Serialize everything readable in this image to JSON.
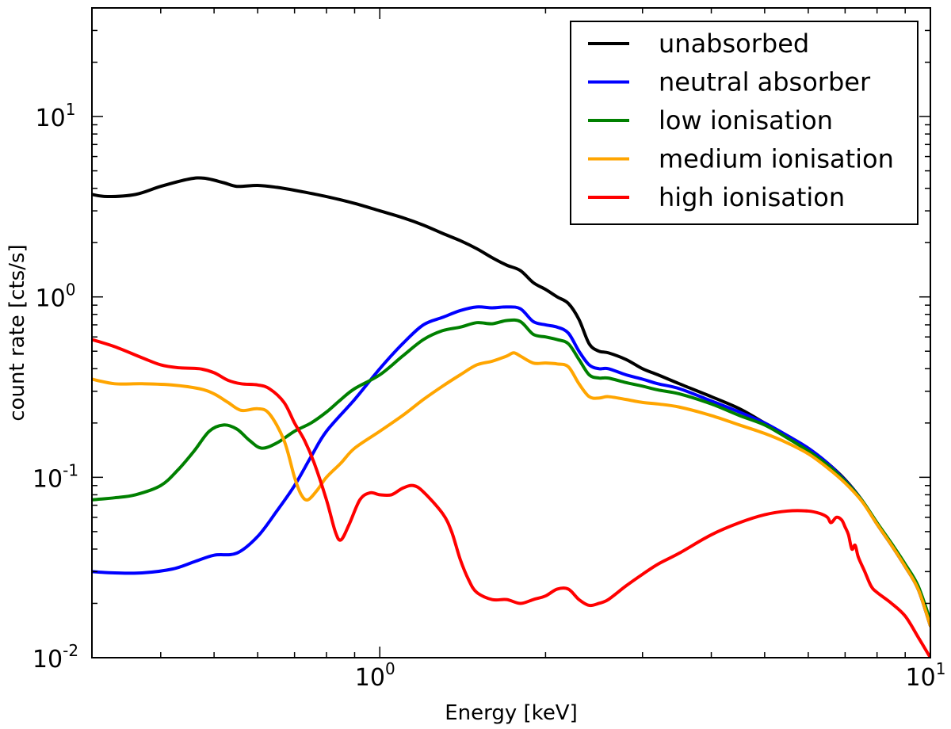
{
  "chart_data": {
    "type": "line",
    "title": "",
    "xlabel": "Energy [keV]",
    "ylabel": "count rate [cts/s]",
    "xscale": "log",
    "yscale": "log",
    "xlim": [
      0.3,
      10
    ],
    "ylim": [
      0.01,
      40
    ],
    "grid": false,
    "legend_position": "top-right",
    "x_ticks": [
      {
        "value": 1,
        "base": "10",
        "exp": "0"
      },
      {
        "value": 10,
        "base": "10",
        "exp": "1"
      }
    ],
    "y_ticks": [
      {
        "value": 0.01,
        "base": "10",
        "exp": "-2"
      },
      {
        "value": 0.1,
        "base": "10",
        "exp": "-1"
      },
      {
        "value": 1,
        "base": "10",
        "exp": "0"
      },
      {
        "value": 10,
        "base": "10",
        "exp": "1"
      }
    ],
    "series": [
      {
        "name": "unabsorbed",
        "color": "#000000",
        "points": [
          [
            0.3,
            3.7
          ],
          [
            0.32,
            3.6
          ],
          [
            0.36,
            3.7
          ],
          [
            0.4,
            4.1
          ],
          [
            0.45,
            4.5
          ],
          [
            0.48,
            4.55
          ],
          [
            0.52,
            4.3
          ],
          [
            0.55,
            4.1
          ],
          [
            0.6,
            4.15
          ],
          [
            0.65,
            4.05
          ],
          [
            0.7,
            3.9
          ],
          [
            0.8,
            3.6
          ],
          [
            0.9,
            3.3
          ],
          [
            1.0,
            3.0
          ],
          [
            1.1,
            2.75
          ],
          [
            1.2,
            2.5
          ],
          [
            1.3,
            2.25
          ],
          [
            1.4,
            2.05
          ],
          [
            1.5,
            1.85
          ],
          [
            1.6,
            1.65
          ],
          [
            1.7,
            1.5
          ],
          [
            1.8,
            1.4
          ],
          [
            1.9,
            1.2
          ],
          [
            2.0,
            1.1
          ],
          [
            2.1,
            1.0
          ],
          [
            2.2,
            0.92
          ],
          [
            2.3,
            0.75
          ],
          [
            2.4,
            0.55
          ],
          [
            2.5,
            0.5
          ],
          [
            2.6,
            0.49
          ],
          [
            2.8,
            0.45
          ],
          [
            3.0,
            0.4
          ],
          [
            3.2,
            0.37
          ],
          [
            3.5,
            0.33
          ],
          [
            4.0,
            0.28
          ],
          [
            4.5,
            0.24
          ],
          [
            5.0,
            0.2
          ],
          [
            5.5,
            0.17
          ],
          [
            6.0,
            0.145
          ],
          [
            6.5,
            0.12
          ],
          [
            7.0,
            0.097
          ],
          [
            7.5,
            0.075
          ],
          [
            8.0,
            0.055
          ],
          [
            8.5,
            0.042
          ],
          [
            9.0,
            0.032
          ],
          [
            9.5,
            0.024
          ],
          [
            10.0,
            0.015
          ]
        ]
      },
      {
        "name": "neutral absorber",
        "color": "#0000ff",
        "points": [
          [
            0.3,
            0.03
          ],
          [
            0.33,
            0.0295
          ],
          [
            0.37,
            0.0295
          ],
          [
            0.42,
            0.031
          ],
          [
            0.46,
            0.034
          ],
          [
            0.5,
            0.037
          ],
          [
            0.55,
            0.038
          ],
          [
            0.6,
            0.047
          ],
          [
            0.65,
            0.065
          ],
          [
            0.7,
            0.09
          ],
          [
            0.75,
            0.13
          ],
          [
            0.8,
            0.18
          ],
          [
            0.9,
            0.27
          ],
          [
            1.0,
            0.4
          ],
          [
            1.1,
            0.55
          ],
          [
            1.2,
            0.7
          ],
          [
            1.3,
            0.77
          ],
          [
            1.4,
            0.84
          ],
          [
            1.5,
            0.88
          ],
          [
            1.6,
            0.87
          ],
          [
            1.7,
            0.88
          ],
          [
            1.8,
            0.86
          ],
          [
            1.9,
            0.73
          ],
          [
            2.0,
            0.7
          ],
          [
            2.1,
            0.68
          ],
          [
            2.2,
            0.63
          ],
          [
            2.3,
            0.5
          ],
          [
            2.4,
            0.42
          ],
          [
            2.5,
            0.4
          ],
          [
            2.6,
            0.4
          ],
          [
            2.8,
            0.37
          ],
          [
            3.0,
            0.35
          ],
          [
            3.2,
            0.33
          ],
          [
            3.5,
            0.31
          ],
          [
            4.0,
            0.265
          ],
          [
            4.5,
            0.23
          ],
          [
            5.0,
            0.2
          ],
          [
            5.5,
            0.17
          ],
          [
            6.0,
            0.145
          ],
          [
            6.5,
            0.12
          ],
          [
            7.0,
            0.096
          ],
          [
            7.5,
            0.075
          ],
          [
            8.0,
            0.055
          ],
          [
            8.5,
            0.042
          ],
          [
            9.0,
            0.032
          ],
          [
            9.5,
            0.024
          ],
          [
            10.0,
            0.015
          ]
        ]
      },
      {
        "name": "low ionisation",
        "color": "#008000",
        "points": [
          [
            0.3,
            0.075
          ],
          [
            0.33,
            0.077
          ],
          [
            0.36,
            0.08
          ],
          [
            0.4,
            0.09
          ],
          [
            0.43,
            0.11
          ],
          [
            0.46,
            0.14
          ],
          [
            0.49,
            0.18
          ],
          [
            0.52,
            0.195
          ],
          [
            0.55,
            0.185
          ],
          [
            0.58,
            0.16
          ],
          [
            0.61,
            0.145
          ],
          [
            0.65,
            0.155
          ],
          [
            0.7,
            0.18
          ],
          [
            0.75,
            0.2
          ],
          [
            0.8,
            0.23
          ],
          [
            0.85,
            0.27
          ],
          [
            0.9,
            0.31
          ],
          [
            1.0,
            0.37
          ],
          [
            1.1,
            0.47
          ],
          [
            1.2,
            0.58
          ],
          [
            1.3,
            0.65
          ],
          [
            1.4,
            0.68
          ],
          [
            1.5,
            0.72
          ],
          [
            1.6,
            0.71
          ],
          [
            1.7,
            0.74
          ],
          [
            1.8,
            0.73
          ],
          [
            1.9,
            0.62
          ],
          [
            2.0,
            0.6
          ],
          [
            2.1,
            0.58
          ],
          [
            2.2,
            0.55
          ],
          [
            2.3,
            0.45
          ],
          [
            2.4,
            0.37
          ],
          [
            2.5,
            0.355
          ],
          [
            2.6,
            0.355
          ],
          [
            2.8,
            0.335
          ],
          [
            3.0,
            0.32
          ],
          [
            3.2,
            0.305
          ],
          [
            3.5,
            0.29
          ],
          [
            4.0,
            0.255
          ],
          [
            4.5,
            0.22
          ],
          [
            5.0,
            0.195
          ],
          [
            5.5,
            0.165
          ],
          [
            6.0,
            0.14
          ],
          [
            6.5,
            0.117
          ],
          [
            7.0,
            0.095
          ],
          [
            7.5,
            0.075
          ],
          [
            8.0,
            0.056
          ],
          [
            8.5,
            0.043
          ],
          [
            9.0,
            0.033
          ],
          [
            9.5,
            0.025
          ],
          [
            10.0,
            0.016
          ]
        ]
      },
      {
        "name": "medium ionisation",
        "color": "#ffa500",
        "points": [
          [
            0.3,
            0.35
          ],
          [
            0.33,
            0.33
          ],
          [
            0.37,
            0.33
          ],
          [
            0.42,
            0.325
          ],
          [
            0.47,
            0.31
          ],
          [
            0.5,
            0.29
          ],
          [
            0.53,
            0.26
          ],
          [
            0.56,
            0.235
          ],
          [
            0.6,
            0.24
          ],
          [
            0.63,
            0.225
          ],
          [
            0.67,
            0.16
          ],
          [
            0.7,
            0.1
          ],
          [
            0.72,
            0.08
          ],
          [
            0.74,
            0.075
          ],
          [
            0.77,
            0.085
          ],
          [
            0.8,
            0.1
          ],
          [
            0.85,
            0.12
          ],
          [
            0.9,
            0.145
          ],
          [
            1.0,
            0.18
          ],
          [
            1.1,
            0.22
          ],
          [
            1.2,
            0.27
          ],
          [
            1.3,
            0.32
          ],
          [
            1.4,
            0.37
          ],
          [
            1.5,
            0.42
          ],
          [
            1.6,
            0.44
          ],
          [
            1.7,
            0.47
          ],
          [
            1.75,
            0.49
          ],
          [
            1.8,
            0.47
          ],
          [
            1.9,
            0.43
          ],
          [
            2.0,
            0.43
          ],
          [
            2.1,
            0.425
          ],
          [
            2.2,
            0.41
          ],
          [
            2.3,
            0.33
          ],
          [
            2.4,
            0.28
          ],
          [
            2.5,
            0.275
          ],
          [
            2.6,
            0.28
          ],
          [
            2.8,
            0.27
          ],
          [
            3.0,
            0.26
          ],
          [
            3.2,
            0.255
          ],
          [
            3.5,
            0.245
          ],
          [
            4.0,
            0.22
          ],
          [
            4.5,
            0.195
          ],
          [
            5.0,
            0.175
          ],
          [
            5.5,
            0.155
          ],
          [
            6.0,
            0.135
          ],
          [
            6.5,
            0.113
          ],
          [
            7.0,
            0.093
          ],
          [
            7.5,
            0.074
          ],
          [
            8.0,
            0.055
          ],
          [
            8.5,
            0.042
          ],
          [
            9.0,
            0.032
          ],
          [
            9.5,
            0.024
          ],
          [
            10.0,
            0.015
          ]
        ]
      },
      {
        "name": "high ionisation",
        "color": "#ff0000",
        "points": [
          [
            0.3,
            0.58
          ],
          [
            0.33,
            0.53
          ],
          [
            0.37,
            0.46
          ],
          [
            0.4,
            0.42
          ],
          [
            0.43,
            0.405
          ],
          [
            0.47,
            0.4
          ],
          [
            0.5,
            0.38
          ],
          [
            0.53,
            0.345
          ],
          [
            0.56,
            0.33
          ],
          [
            0.6,
            0.325
          ],
          [
            0.63,
            0.31
          ],
          [
            0.67,
            0.26
          ],
          [
            0.7,
            0.2
          ],
          [
            0.73,
            0.16
          ],
          [
            0.76,
            0.12
          ],
          [
            0.8,
            0.075
          ],
          [
            0.83,
            0.05
          ],
          [
            0.85,
            0.045
          ],
          [
            0.88,
            0.055
          ],
          [
            0.92,
            0.075
          ],
          [
            0.96,
            0.082
          ],
          [
            1.0,
            0.08
          ],
          [
            1.05,
            0.08
          ],
          [
            1.1,
            0.087
          ],
          [
            1.15,
            0.09
          ],
          [
            1.2,
            0.083
          ],
          [
            1.3,
            0.063
          ],
          [
            1.35,
            0.05
          ],
          [
            1.4,
            0.035
          ],
          [
            1.45,
            0.027
          ],
          [
            1.5,
            0.023
          ],
          [
            1.6,
            0.021
          ],
          [
            1.7,
            0.021
          ],
          [
            1.8,
            0.02
          ],
          [
            1.9,
            0.021
          ],
          [
            2.0,
            0.022
          ],
          [
            2.1,
            0.024
          ],
          [
            2.2,
            0.024
          ],
          [
            2.3,
            0.021
          ],
          [
            2.4,
            0.0195
          ],
          [
            2.5,
            0.02
          ],
          [
            2.6,
            0.021
          ],
          [
            2.8,
            0.025
          ],
          [
            3.0,
            0.029
          ],
          [
            3.2,
            0.033
          ],
          [
            3.5,
            0.038
          ],
          [
            4.0,
            0.048
          ],
          [
            4.5,
            0.056
          ],
          [
            5.0,
            0.062
          ],
          [
            5.5,
            0.065
          ],
          [
            6.0,
            0.065
          ],
          [
            6.3,
            0.063
          ],
          [
            6.5,
            0.06
          ],
          [
            6.6,
            0.056
          ],
          [
            6.75,
            0.06
          ],
          [
            6.9,
            0.058
          ],
          [
            7.0,
            0.053
          ],
          [
            7.1,
            0.048
          ],
          [
            7.2,
            0.04
          ],
          [
            7.3,
            0.042
          ],
          [
            7.4,
            0.036
          ],
          [
            7.6,
            0.03
          ],
          [
            7.8,
            0.025
          ],
          [
            8.0,
            0.023
          ],
          [
            8.5,
            0.02
          ],
          [
            9.0,
            0.017
          ],
          [
            9.5,
            0.013
          ],
          [
            10.0,
            0.01
          ]
        ]
      }
    ]
  }
}
